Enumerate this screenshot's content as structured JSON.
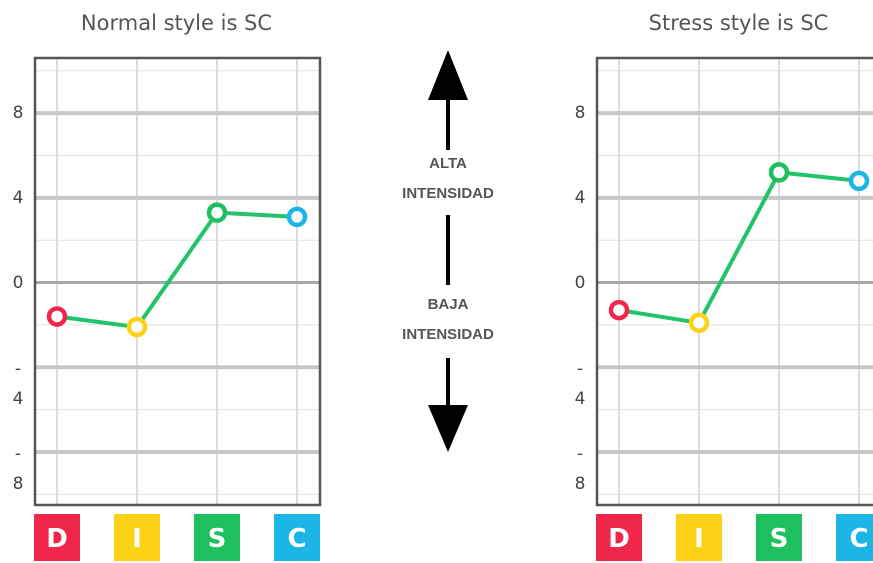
{
  "chart_data": [
    {
      "type": "line",
      "title": "Normal style is SC",
      "categories": [
        "D",
        "I",
        "S",
        "C"
      ],
      "category_colors": [
        "#f0264a",
        "#fcd116",
        "#1dbf5e",
        "#1bb5e6"
      ],
      "series": [
        {
          "color": "#22c46a",
          "values": [
            -1.6,
            -2.1,
            3.3,
            3.1
          ]
        }
      ],
      "ylim": [
        -10.5,
        10.6
      ],
      "yticks": [
        8,
        4,
        0,
        -4,
        -8
      ],
      "grid": true
    },
    {
      "type": "line",
      "title": "Stress style is SC",
      "categories": [
        "D",
        "I",
        "S",
        "C"
      ],
      "category_colors": [
        "#f0264a",
        "#fcd116",
        "#1dbf5e",
        "#1bb5e6"
      ],
      "series": [
        {
          "color": "#22c46a",
          "values": [
            -1.3,
            -1.9,
            5.2,
            4.8
          ]
        }
      ],
      "ylim": [
        -10.5,
        10.6
      ],
      "yticks": [
        8,
        4,
        0,
        -4,
        -8
      ],
      "grid": true
    }
  ],
  "center": {
    "high": [
      "ALTA",
      "INTENSIDAD"
    ],
    "low": [
      "BAJA",
      "INTENSIDAD"
    ]
  }
}
